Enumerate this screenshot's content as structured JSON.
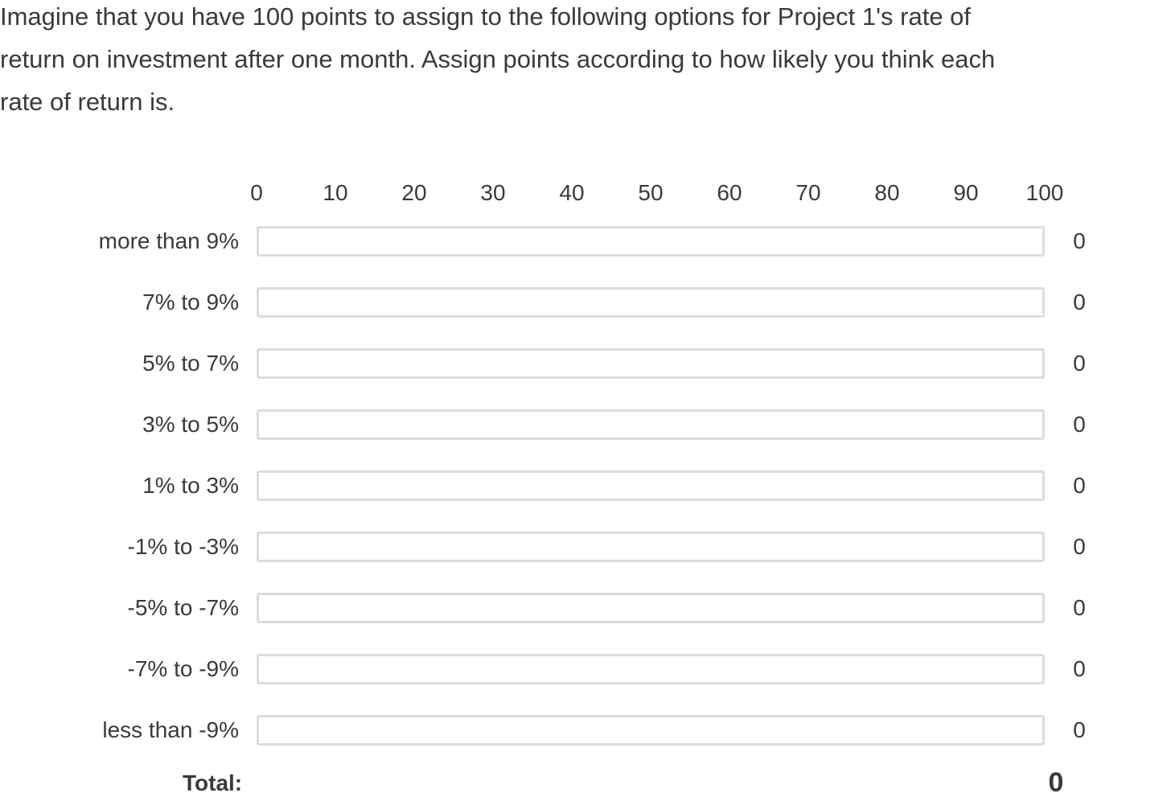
{
  "question": {
    "text": "Imagine that you have 100 points to assign to the following options for Project 1's rate of\nreturn on investment after one month. Assign points according to how likely you think each\nrate of return is."
  },
  "scale": {
    "min": 0,
    "max": 100,
    "ticks": [
      "0",
      "10",
      "20",
      "30",
      "40",
      "50",
      "60",
      "70",
      "80",
      "90",
      "100"
    ]
  },
  "options": [
    {
      "label": "more than 9%",
      "value": 0
    },
    {
      "label": "7% to 9%",
      "value": 0
    },
    {
      "label": "5% to 7%",
      "value": 0
    },
    {
      "label": "3% to 5%",
      "value": 0
    },
    {
      "label": "1% to 3%",
      "value": 0
    },
    {
      "label": "-1% to -3%",
      "value": 0
    },
    {
      "label": "-5% to -7%",
      "value": 0
    },
    {
      "label": "-7% to -9%",
      "value": 0
    },
    {
      "label": "less than -9%",
      "value": 0
    }
  ],
  "total": {
    "label": "Total:",
    "value": "0"
  },
  "colors": {
    "text": "#3a3a3a",
    "track_border": "#dcdcdc",
    "fill": "#9ab8d8"
  }
}
